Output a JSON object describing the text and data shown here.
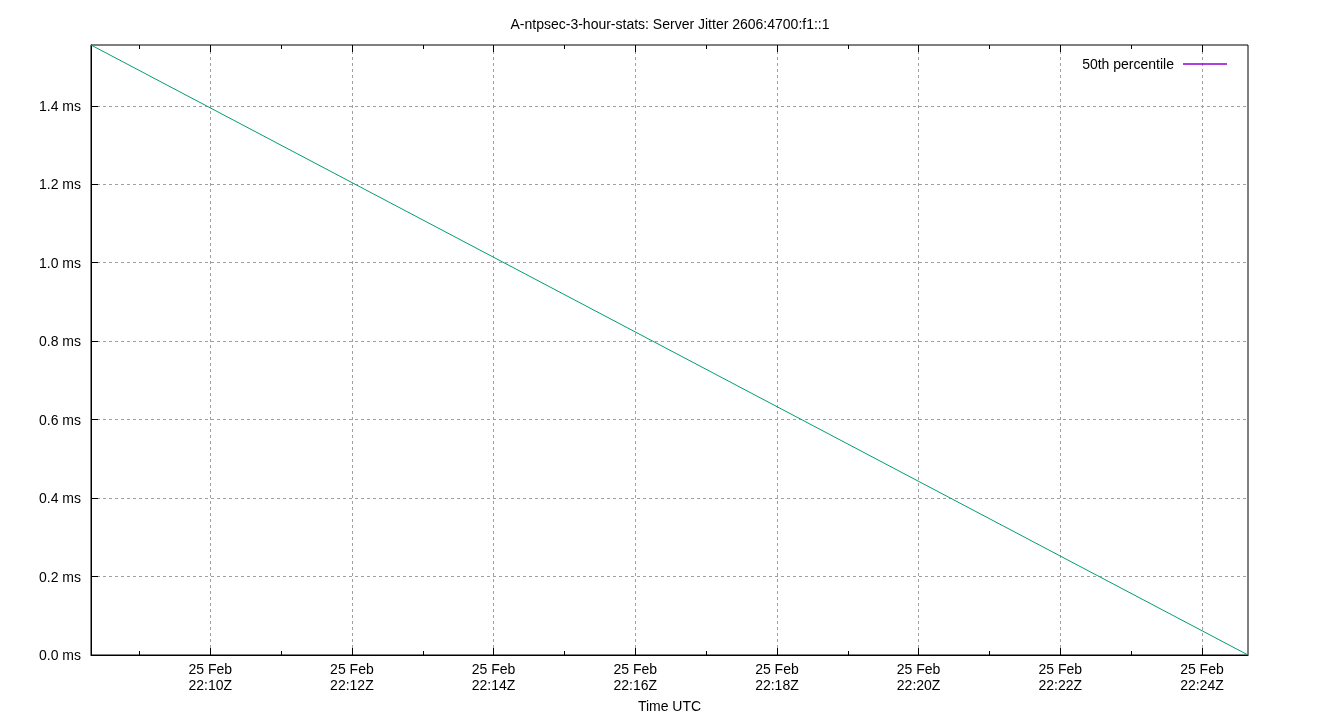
{
  "chart_data": {
    "type": "line",
    "title": "A-ntpsec-3-hour-stats: Server Jitter 2606:4700:f1::1",
    "xlabel": "Time UTC",
    "x": [
      "--02-25T22:08:19",
      "--02-25T22:24:39"
    ],
    "series": [
      {
        "name": "50th percentile",
        "color": "#9400d3",
        "values": [
          null,
          null
        ]
      },
      {
        "color": "#009e73",
        "values": [
          1.555,
          0
        ]
      }
    ],
    "xlim": [
      "--02-25T22:08:19",
      "--02-25T22:24:39"
    ],
    "xticks": [
      {
        "value": "--02-25T22:09",
        "label": null
      },
      {
        "value": "--02-25T22:10",
        "label": "25 Feb\n22:10Z"
      },
      {
        "value": "--02-25T22:11",
        "label": null
      },
      {
        "value": "--02-25T22:12",
        "label": "25 Feb\n22:12Z"
      },
      {
        "value": "--02-25T22:13",
        "label": null
      },
      {
        "value": "--02-25T22:14",
        "label": "25 Feb\n22:14Z"
      },
      {
        "value": "--02-25T22:15",
        "label": null
      },
      {
        "value": "--02-25T22:16",
        "label": "25 Feb\n22:16Z"
      },
      {
        "value": "--02-25T22:17",
        "label": null
      },
      {
        "value": "--02-25T22:18",
        "label": "25 Feb\n22:18Z"
      },
      {
        "value": "--02-25T22:19",
        "label": null
      },
      {
        "value": "--02-25T22:20",
        "label": "25 Feb\n22:20Z"
      },
      {
        "value": "--02-25T22:21",
        "label": null
      },
      {
        "value": "--02-25T22:22",
        "label": "25 Feb\n22:22Z"
      },
      {
        "value": "--02-25T22:23",
        "label": null
      },
      {
        "value": "--02-25T22:24",
        "label": "25 Feb\n22:24Z"
      }
    ],
    "ylim": [
      0,
      1.555
    ],
    "yticks": [
      {
        "value": 0,
        "label": "0.0 ms"
      },
      {
        "value": 0.2,
        "label": "0.2 ms"
      },
      {
        "value": 0.4,
        "label": "0.4 ms"
      },
      {
        "value": 0.6,
        "label": "0.6 ms"
      },
      {
        "value": 0.8,
        "label": "0.8 ms"
      },
      {
        "value": 1.0,
        "label": "1.0 ms"
      },
      {
        "value": 1.2,
        "label": "1.2 ms"
      },
      {
        "value": 1.4,
        "label": "1.4 ms"
      }
    ],
    "grid": true,
    "legend": "top right",
    "marker": "none",
    "line_style": "solid"
  }
}
